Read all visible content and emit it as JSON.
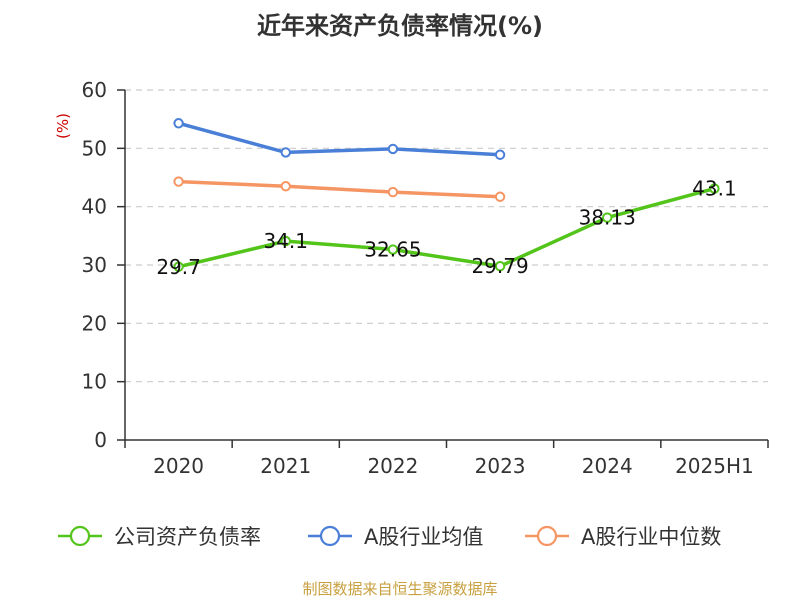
{
  "chart_data": {
    "type": "line",
    "title": "近年来资产负债率情况(%)",
    "ylabel": "(%)",
    "xlabel": "",
    "categories": [
      "2020",
      "2021",
      "2022",
      "2023",
      "2024",
      "2025H1"
    ],
    "ylim": [
      0,
      60
    ],
    "yticks": [
      0,
      10,
      20,
      30,
      40,
      50,
      60
    ],
    "grid": true,
    "legend_position": "bottom",
    "series": [
      {
        "name": "公司资产负债率",
        "color": "#52c41a",
        "values": [
          29.7,
          34.1,
          32.65,
          29.79,
          38.13,
          43.1
        ],
        "labels": [
          "29.7",
          "34.1",
          "32.65",
          "29.79",
          "38.13",
          "43.1"
        ]
      },
      {
        "name": "A股行业均值",
        "color": "#4a7fd8",
        "values": [
          54.3,
          49.3,
          49.9,
          48.9,
          null,
          null
        ]
      },
      {
        "name": "A股行业中位数",
        "color": "#f59563",
        "values": [
          44.3,
          43.5,
          42.5,
          41.7,
          null,
          null
        ]
      }
    ],
    "source": "制图数据来自恒生聚源数据库"
  }
}
